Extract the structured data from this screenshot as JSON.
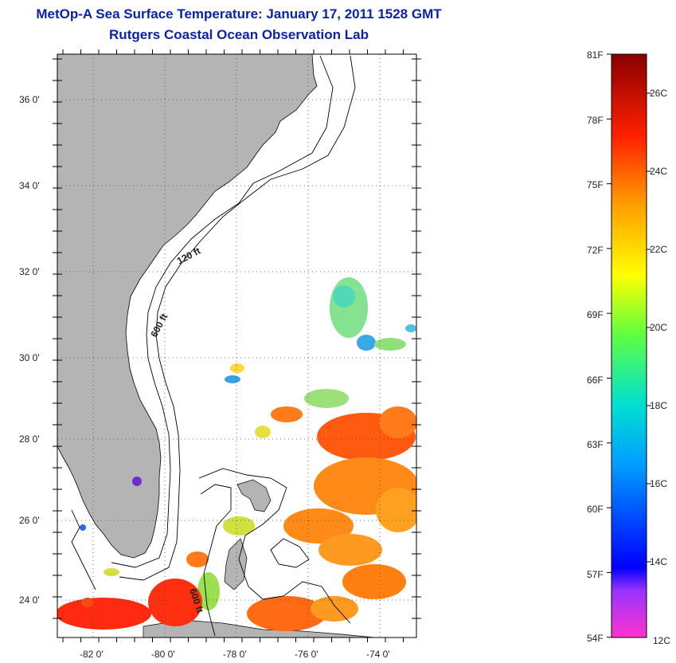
{
  "title": {
    "line1": "MetOp-A Sea Surface Temperature:  January 17, 2011 1528 GMT",
    "line2": "Rutgers Coastal Ocean Observation Lab"
  },
  "map": {
    "lon_range": [
      -83,
      -73
    ],
    "lat_range": [
      23,
      37
    ],
    "lat_labels": [
      "36 0'",
      "34 0'",
      "32 0'",
      "30 0'",
      "28 0'",
      "26 0'",
      "24 0'"
    ],
    "lon_labels": [
      "-82 0'",
      "-80 0'",
      "-78 0'",
      "-76 0'",
      "-74 0'"
    ],
    "isobath_labels": {
      "shelf_120": "120 ft",
      "shelf_600": "600 ft",
      "strait_600": "600 ft"
    },
    "colors": {
      "land": "#b4b4b4",
      "ocean": "#ffffff",
      "contour": "#000000"
    }
  },
  "colorbar": {
    "fahrenheit": [
      "81F",
      "78F",
      "75F",
      "72F",
      "69F",
      "66F",
      "63F",
      "60F",
      "57F",
      "54F"
    ],
    "celsius": [
      "26C",
      "24C",
      "22C",
      "20C",
      "18C",
      "16C",
      "14C",
      "12C"
    ],
    "range_F": [
      54,
      81
    ],
    "range_C": [
      12,
      27
    ]
  }
}
